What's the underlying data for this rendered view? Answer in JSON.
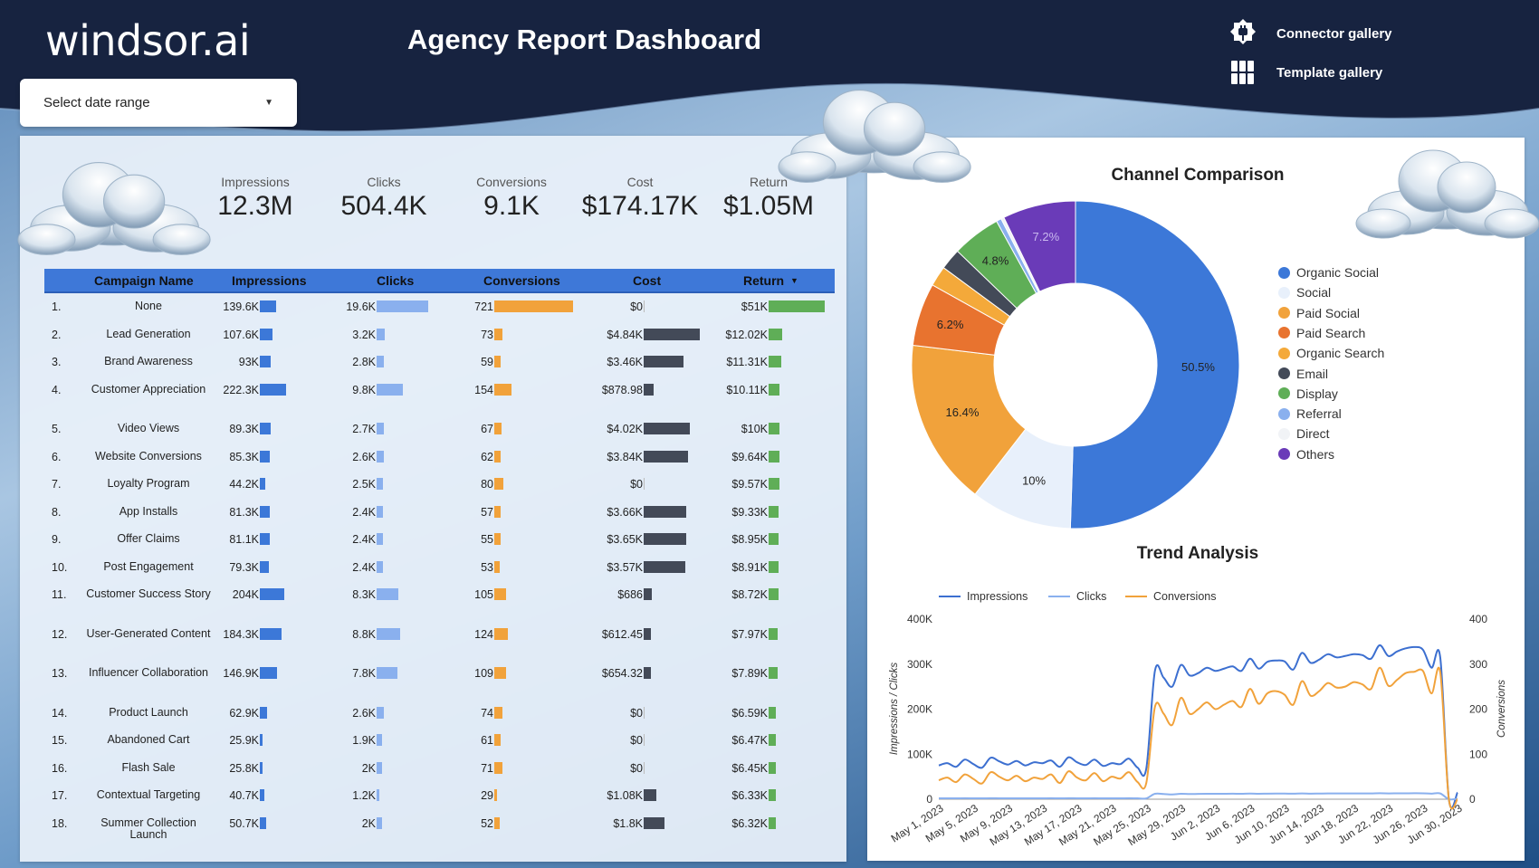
{
  "header": {
    "logo": "windsor.ai",
    "title": "Agency Report Dashboard",
    "nav": [
      {
        "label": "Connector gallery",
        "icon": "plug-icon"
      },
      {
        "label": "Template gallery",
        "icon": "grid-icon"
      }
    ]
  },
  "date_range": {
    "label": "Select date range",
    "icon": "caret-down-icon"
  },
  "kpis": [
    {
      "label": "Impressions",
      "value": "12.3M"
    },
    {
      "label": "Clicks",
      "value": "504.4K"
    },
    {
      "label": "Conversions",
      "value": "9.1K"
    },
    {
      "label": "Cost",
      "value": "$174.17K"
    },
    {
      "label": "Return",
      "value": "$1.05M"
    }
  ],
  "table": {
    "columns": [
      "Campaign Name",
      "Impressions",
      "Clicks",
      "Conversions",
      "Cost",
      "Return"
    ],
    "sort_indicator": "▼",
    "bar_colors": {
      "impressions": "#3c78d8",
      "clicks": "#8ab0ee",
      "conversions": "#f1a23b",
      "cost": "#434a58",
      "return": "#5fae57"
    },
    "rows": [
      {
        "n": "1.",
        "name": "None",
        "imp": "139.6K",
        "impv": 139.6,
        "clk": "19.6K",
        "clkv": 19.6,
        "conv": "721",
        "convv": 721,
        "cost": "$0",
        "costv": 0,
        "ret": "$51K",
        "retv": 51
      },
      {
        "n": "2.",
        "name": "Lead Generation",
        "imp": "107.6K",
        "impv": 107.6,
        "clk": "3.2K",
        "clkv": 3.2,
        "conv": "73",
        "convv": 73,
        "cost": "$4.84K",
        "costv": 4.84,
        "ret": "$12.02K",
        "retv": 12.02
      },
      {
        "n": "3.",
        "name": "Brand Awareness",
        "imp": "93K",
        "impv": 93,
        "clk": "2.8K",
        "clkv": 2.8,
        "conv": "59",
        "convv": 59,
        "cost": "$3.46K",
        "costv": 3.46,
        "ret": "$11.31K",
        "retv": 11.31
      },
      {
        "n": "4.",
        "name": "Customer Appreciation",
        "imp": "222.3K",
        "impv": 222.3,
        "clk": "9.8K",
        "clkv": 9.8,
        "conv": "154",
        "convv": 154,
        "cost": "$878.98",
        "costv": 0.879,
        "ret": "$10.11K",
        "retv": 10.11
      },
      {
        "n": "5.",
        "name": "Video Views",
        "imp": "89.3K",
        "impv": 89.3,
        "clk": "2.7K",
        "clkv": 2.7,
        "conv": "67",
        "convv": 67,
        "cost": "$4.02K",
        "costv": 4.02,
        "ret": "$10K",
        "retv": 10
      },
      {
        "n": "6.",
        "name": "Website Conversions",
        "imp": "85.3K",
        "impv": 85.3,
        "clk": "2.6K",
        "clkv": 2.6,
        "conv": "62",
        "convv": 62,
        "cost": "$3.84K",
        "costv": 3.84,
        "ret": "$9.64K",
        "retv": 9.64
      },
      {
        "n": "7.",
        "name": "Loyalty Program",
        "imp": "44.2K",
        "impv": 44.2,
        "clk": "2.5K",
        "clkv": 2.5,
        "conv": "80",
        "convv": 80,
        "cost": "$0",
        "costv": 0,
        "ret": "$9.57K",
        "retv": 9.57
      },
      {
        "n": "8.",
        "name": "App Installs",
        "imp": "81.3K",
        "impv": 81.3,
        "clk": "2.4K",
        "clkv": 2.4,
        "conv": "57",
        "convv": 57,
        "cost": "$3.66K",
        "costv": 3.66,
        "ret": "$9.33K",
        "retv": 9.33
      },
      {
        "n": "9.",
        "name": "Offer Claims",
        "imp": "81.1K",
        "impv": 81.1,
        "clk": "2.4K",
        "clkv": 2.4,
        "conv": "55",
        "convv": 55,
        "cost": "$3.65K",
        "costv": 3.65,
        "ret": "$8.95K",
        "retv": 8.95
      },
      {
        "n": "10.",
        "name": "Post Engagement",
        "imp": "79.3K",
        "impv": 79.3,
        "clk": "2.4K",
        "clkv": 2.4,
        "conv": "53",
        "convv": 53,
        "cost": "$3.57K",
        "costv": 3.57,
        "ret": "$8.91K",
        "retv": 8.91
      },
      {
        "n": "11.",
        "name": "Customer Success Story",
        "imp": "204K",
        "impv": 204,
        "clk": "8.3K",
        "clkv": 8.3,
        "conv": "105",
        "convv": 105,
        "cost": "$686",
        "costv": 0.686,
        "ret": "$8.72K",
        "retv": 8.72
      },
      {
        "n": "12.",
        "name": "User-Generated Content",
        "imp": "184.3K",
        "impv": 184.3,
        "clk": "8.8K",
        "clkv": 8.8,
        "conv": "124",
        "convv": 124,
        "cost": "$612.45",
        "costv": 0.612,
        "ret": "$7.97K",
        "retv": 7.97
      },
      {
        "n": "13.",
        "name": "Influencer Collaboration",
        "imp": "146.9K",
        "impv": 146.9,
        "clk": "7.8K",
        "clkv": 7.8,
        "conv": "109",
        "convv": 109,
        "cost": "$654.32",
        "costv": 0.654,
        "ret": "$7.89K",
        "retv": 7.89
      },
      {
        "n": "14.",
        "name": "Product Launch",
        "imp": "62.9K",
        "impv": 62.9,
        "clk": "2.6K",
        "clkv": 2.6,
        "conv": "74",
        "convv": 74,
        "cost": "$0",
        "costv": 0,
        "ret": "$6.59K",
        "retv": 6.59
      },
      {
        "n": "15.",
        "name": "Abandoned Cart",
        "imp": "25.9K",
        "impv": 25.9,
        "clk": "1.9K",
        "clkv": 1.9,
        "conv": "61",
        "convv": 61,
        "cost": "$0",
        "costv": 0,
        "ret": "$6.47K",
        "retv": 6.47
      },
      {
        "n": "16.",
        "name": "Flash Sale",
        "imp": "25.8K",
        "impv": 25.8,
        "clk": "2K",
        "clkv": 2,
        "conv": "71",
        "convv": 71,
        "cost": "$0",
        "costv": 0,
        "ret": "$6.45K",
        "retv": 6.45
      },
      {
        "n": "17.",
        "name": "Contextual Targeting",
        "imp": "40.7K",
        "impv": 40.7,
        "clk": "1.2K",
        "clkv": 1.2,
        "conv": "29",
        "convv": 29,
        "cost": "$1.08K",
        "costv": 1.08,
        "ret": "$6.33K",
        "retv": 6.33
      },
      {
        "n": "18.",
        "name": "Summer Collection Launch",
        "imp": "50.7K",
        "impv": 50.7,
        "clk": "2K",
        "clkv": 2,
        "conv": "52",
        "convv": 52,
        "cost": "$1.8K",
        "costv": 1.8,
        "ret": "$6.32K",
        "retv": 6.32
      }
    ]
  },
  "chart_data": [
    {
      "type": "pie",
      "title": "Channel Comparison",
      "donut": true,
      "slices": [
        {
          "label": "Organic Social",
          "value": 50.5,
          "display": "50.5%",
          "color": "#3c78d8"
        },
        {
          "label": "Social",
          "value": 10,
          "display": "10%",
          "color": "#e8f0fb"
        },
        {
          "label": "Paid Social",
          "value": 16.4,
          "display": "16.4%",
          "color": "#f1a23b"
        },
        {
          "label": "Paid Search",
          "value": 6.2,
          "display": "6.2%",
          "color": "#e8732f"
        },
        {
          "label": "Organic Search",
          "value": 2.0,
          "display": "",
          "color": "#f4a93a"
        },
        {
          "label": "Email",
          "value": 2.1,
          "display": "",
          "color": "#434a58"
        },
        {
          "label": "Display",
          "value": 4.8,
          "display": "4.8%",
          "color": "#5fae57"
        },
        {
          "label": "Referral",
          "value": 0.5,
          "display": "",
          "color": "#8ab0ee"
        },
        {
          "label": "Direct",
          "value": 0.3,
          "display": "",
          "color": "#f1f3f6"
        },
        {
          "label": "Others",
          "value": 7.2,
          "display": "7.2%",
          "color": "#6a3bb8"
        }
      ],
      "legend": "right"
    },
    {
      "type": "line",
      "title": "Trend Analysis",
      "ylabel": "Impressions / Clicks",
      "y2label": "Conversions",
      "ylim": [
        0,
        400000
      ],
      "y2lim": [
        0,
        400
      ],
      "yticks": [
        "0",
        "100K",
        "200K",
        "300K",
        "400K"
      ],
      "y2ticks": [
        "0",
        "100",
        "200",
        "300",
        "400"
      ],
      "xticks": [
        "May 1, 2023",
        "May 5, 2023",
        "May 9, 2023",
        "May 13, 2023",
        "May 17, 2023",
        "May 21, 2023",
        "May 25, 2023",
        "May 29, 2023",
        "Jun 2, 2023",
        "Jun 6, 2023",
        "Jun 10, 2023",
        "Jun 14, 2023",
        "Jun 18, 2023",
        "Jun 22, 2023",
        "Jun 26, 2023",
        "Jun 30, 2023"
      ],
      "x_start": "May 1, 2023",
      "x_end": "Jun 30, 2023",
      "legend": "top",
      "series": [
        {
          "name": "Impressions",
          "axis": "left",
          "color": "#3c6fd0",
          "values": [
            75000,
            80000,
            72000,
            88000,
            78000,
            70000,
            92000,
            84000,
            77000,
            85000,
            75000,
            82000,
            80000,
            86000,
            72000,
            93000,
            82000,
            76000,
            88000,
            74000,
            80000,
            78000,
            90000,
            70000,
            68000,
            285000,
            270000,
            250000,
            298000,
            275000,
            280000,
            292000,
            285000,
            290000,
            295000,
            285000,
            312000,
            290000,
            305000,
            308000,
            306000,
            288000,
            325000,
            303000,
            310000,
            322000,
            315000,
            318000,
            322000,
            320000,
            312000,
            342000,
            318000,
            328000,
            335000,
            338000,
            332000,
            292000,
            315000,
            0,
            15000
          ]
        },
        {
          "name": "Clicks",
          "axis": "left",
          "color": "#8ab0ee",
          "values": [
            2000,
            2100,
            1900,
            2200,
            2000,
            1900,
            2300,
            2100,
            2000,
            2100,
            1900,
            2100,
            2000,
            2200,
            1900,
            2300,
            2100,
            2000,
            2200,
            1900,
            2000,
            2000,
            2200,
            1900,
            1800,
            12000,
            11500,
            10500,
            12000,
            11500,
            11800,
            12000,
            12000,
            12100,
            12200,
            12000,
            12500,
            12100,
            12400,
            12500,
            12500,
            12200,
            12800,
            12400,
            12600,
            12800,
            12700,
            12800,
            12900,
            12900,
            12800,
            13200,
            12900,
            13000,
            13100,
            13200,
            13100,
            12400,
            12800,
            0,
            1000
          ]
        },
        {
          "name": "Conversions",
          "axis": "right",
          "color": "#f1a23b",
          "values": [
            42,
            48,
            38,
            55,
            45,
            35,
            60,
            50,
            42,
            52,
            40,
            48,
            45,
            55,
            36,
            62,
            48,
            42,
            58,
            40,
            50,
            46,
            60,
            38,
            36,
            205,
            190,
            165,
            225,
            190,
            200,
            215,
            200,
            210,
            218,
            205,
            245,
            212,
            235,
            240,
            232,
            210,
            262,
            230,
            240,
            258,
            248,
            250,
            260,
            255,
            245,
            292,
            252,
            265,
            280,
            283,
            285,
            235,
            282,
            0,
            0
          ]
        }
      ]
    }
  ]
}
